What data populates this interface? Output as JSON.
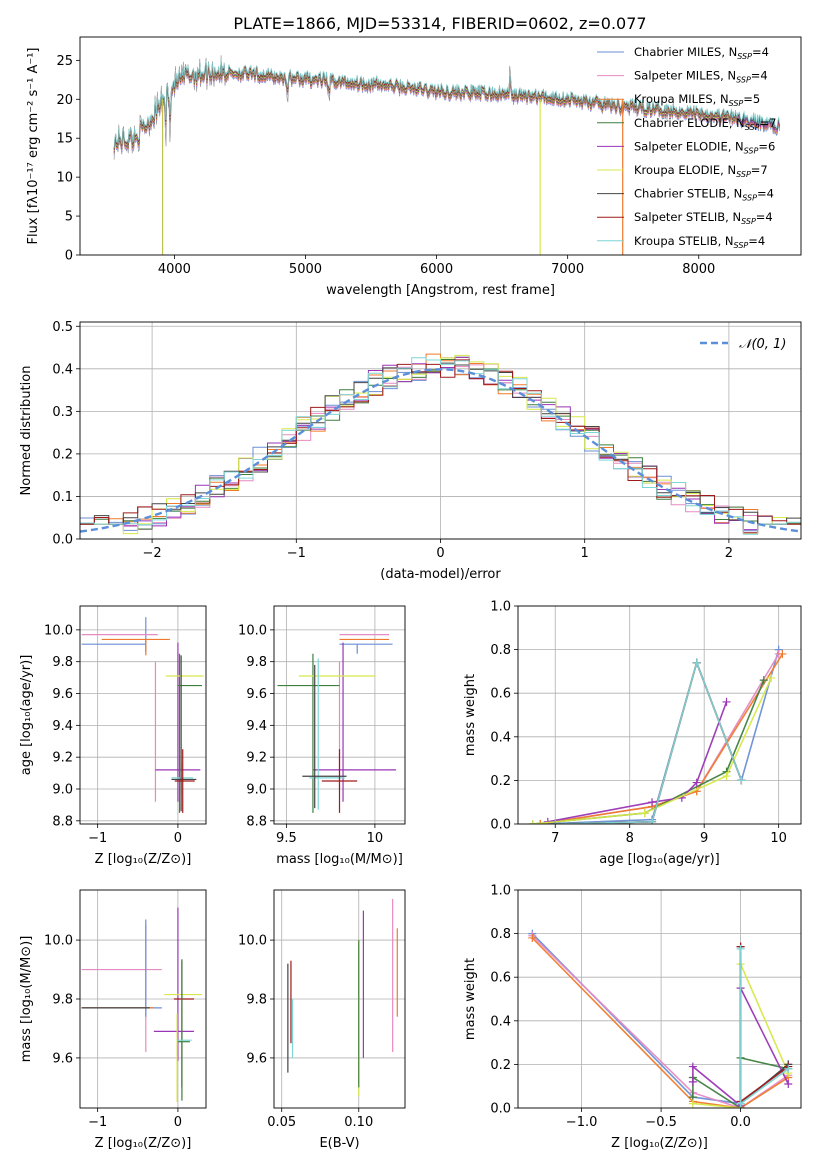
{
  "figure": {
    "title": "PLATE=1866, MJD=53314, FIBERID=0602, z=0.077"
  },
  "chart_data": [
    {
      "id": "spectrum",
      "type": "line",
      "xlabel": "wavelength [Angstrom, rest frame]",
      "ylabel": "Flux [fλ10⁻¹⁷ erg cm⁻² s⁻¹ A⁻¹]",
      "xlim": [
        3280,
        8780
      ],
      "ylim": [
        0,
        28
      ],
      "xticks": [
        4000,
        5000,
        6000,
        7000,
        8000
      ],
      "yticks": [
        0,
        5,
        10,
        15,
        20,
        25
      ],
      "legend_position": "upper right",
      "grid": false,
      "series": [
        {
          "name": "Chabrier MILES, N_SSP=4",
          "color": "#6a8fd6"
        },
        {
          "name": "Salpeter MILES, N_SSP=4",
          "color": "#e68ac3"
        },
        {
          "name": "Kroupa MILES, N_SSP=5",
          "color": "#f07a2c"
        },
        {
          "name": "Chabrier ELODIE, N_SSP=7",
          "color": "#3f7f3f"
        },
        {
          "name": "Salpeter ELODIE, N_SSP=6",
          "color": "#9a35b5"
        },
        {
          "name": "Kroupa ELODIE, N_SSP=7",
          "color": "#d6e84a"
        },
        {
          "name": "Chabrier STELIB, N_SSP=4",
          "color": "#444444"
        },
        {
          "name": "Salpeter STELIB, N_SSP=4",
          "color": "#a01a1a"
        },
        {
          "name": "Kroupa STELIB, N_SSP=4",
          "color": "#7fd6d6"
        }
      ],
      "data_color": "#888888",
      "continuum": {
        "x": [
          3540,
          3700,
          3800,
          3900,
          4000,
          4100,
          4300,
          4500,
          4800,
          5200,
          5600,
          6000,
          6500,
          7000,
          7300,
          7600,
          8000,
          8300,
          8600
        ],
        "y": [
          14.5,
          15,
          17,
          19.5,
          22,
          23,
          23.5,
          23.3,
          22.8,
          22.3,
          21.8,
          21,
          20.6,
          20,
          19.2,
          18.8,
          18.2,
          17.5,
          16.5
        ]
      }
    },
    {
      "id": "residuals",
      "type": "line",
      "xlabel": "(data-model)/error",
      "ylabel": "Normed distribution",
      "xlim": [
        -2.5,
        2.5
      ],
      "ylim": [
        0,
        0.51
      ],
      "xticks": [
        -2,
        -1,
        0,
        1,
        2
      ],
      "yticks": [
        0.0,
        0.1,
        0.2,
        0.3,
        0.4,
        0.5
      ],
      "grid": true,
      "legend_position": "upper right",
      "reference": {
        "name": "𝒩(0, 1)",
        "color": "#5b8fd9",
        "mean": 0,
        "sigma": 1
      }
    },
    {
      "id": "age-vs-Z",
      "type": "scatter",
      "xlabel": "Z [log₁₀(Z/Z⊙)]",
      "ylabel": "age  [log₁₀(age/yr)]",
      "xlim": [
        -1.22,
        0.35
      ],
      "ylim": [
        8.78,
        10.15
      ],
      "xticks": [
        -1,
        0
      ],
      "yticks": [
        8.8,
        9.0,
        9.2,
        9.4,
        9.6,
        9.8,
        10.0
      ],
      "grid": true,
      "errorbars": [
        {
          "x": -0.4,
          "y": 9.91,
          "xerr": [
            0.8,
            0
          ],
          "yerr": [
            0.05,
            0.17
          ],
          "color": "#6a8fd6"
        },
        {
          "x": -0.4,
          "y": 9.97,
          "xerr": [
            0.8,
            0.15
          ],
          "yerr": [
            0,
            0
          ],
          "color": "#e68ac3"
        },
        {
          "x": -0.4,
          "y": 9.94,
          "xerr": [
            0.55,
            0.3
          ],
          "yerr": [
            0.1,
            0
          ],
          "color": "#f07a2c"
        },
        {
          "x": -0.28,
          "y": 9.1,
          "xerr": [
            0,
            0
          ],
          "yerr": [
            0.18,
            0.7
          ],
          "color": "#e68ac3"
        },
        {
          "x": 0.0,
          "y": 9.12,
          "xerr": [
            0.28,
            0.28
          ],
          "yerr": [
            0.2,
            0.8
          ],
          "color": "#9a35b5"
        },
        {
          "x": 0.02,
          "y": 9.65,
          "xerr": [
            0.02,
            0.28
          ],
          "yerr": [
            0.8,
            0.2
          ],
          "color": "#3f7f3f"
        },
        {
          "x": 0.04,
          "y": 9.71,
          "xerr": [
            0.19,
            0.28
          ],
          "yerr": [
            0,
            0
          ],
          "color": "#d6e84a"
        },
        {
          "x": 0.04,
          "y": 9.07,
          "xerr": [
            0.12,
            0.15
          ],
          "yerr": [
            0.1,
            0.1
          ],
          "color": "#7fd6d6"
        },
        {
          "x": 0.04,
          "y": 9.06,
          "xerr": [
            0.12,
            0.19
          ],
          "yerr": [
            0.2,
            0.78
          ],
          "color": "#444444"
        },
        {
          "x": 0.06,
          "y": 9.05,
          "xerr": [
            0.1,
            0.15
          ],
          "yerr": [
            0.2,
            0.2
          ],
          "color": "#a01a1a"
        }
      ]
    },
    {
      "id": "age-vs-mass",
      "type": "scatter",
      "xlabel": "mass [log₁₀(M/M⊙)]",
      "ylabel": "",
      "xlim": [
        9.43,
        10.17
      ],
      "ylim": [
        8.78,
        10.15
      ],
      "xticks": [
        9.5,
        10.0
      ],
      "yticks": [
        8.8,
        9.0,
        9.2,
        9.4,
        9.6,
        9.8,
        10.0
      ],
      "grid": true,
      "errorbars": [
        {
          "x": 9.9,
          "y": 9.91,
          "xerr": [
            0.1,
            0.2
          ],
          "yerr": [
            0.06,
            0.0
          ],
          "color": "#6a8fd6"
        },
        {
          "x": 9.9,
          "y": 9.97,
          "xerr": [
            0.1,
            0.18
          ],
          "yerr": [
            0,
            0
          ],
          "color": "#e68ac3"
        },
        {
          "x": 9.88,
          "y": 9.94,
          "xerr": [
            0.08,
            0.2
          ],
          "yerr": [
            0,
            0
          ],
          "color": "#f07a2c"
        },
        {
          "x": 9.8,
          "y": 9.1,
          "xerr": [
            0,
            0
          ],
          "yerr": [
            0.1,
            0.7
          ],
          "color": "#e68ac3"
        },
        {
          "x": 9.82,
          "y": 9.12,
          "xerr": [
            0.17,
            0.3
          ],
          "yerr": [
            0.2,
            0.8
          ],
          "color": "#9a35b5"
        },
        {
          "x": 9.65,
          "y": 9.65,
          "xerr": [
            0.2,
            0.15
          ],
          "yerr": [
            0.8,
            0.2
          ],
          "color": "#3f7f3f"
        },
        {
          "x": 9.72,
          "y": 9.71,
          "xerr": [
            0.15,
            0.28
          ],
          "yerr": [
            0,
            0
          ],
          "color": "#d6e84a"
        },
        {
          "x": 9.68,
          "y": 9.07,
          "xerr": [
            0.05,
            0.15
          ],
          "yerr": [
            0.2,
            0.75
          ],
          "color": "#7fd6d6"
        },
        {
          "x": 9.66,
          "y": 9.08,
          "xerr": [
            0.07,
            0.18
          ],
          "yerr": [
            0.2,
            0.7
          ],
          "color": "#444444"
        },
        {
          "x": 9.8,
          "y": 9.05,
          "xerr": [
            0.1,
            0.1
          ],
          "yerr": [
            0.2,
            0.2
          ],
          "color": "#a01a1a"
        }
      ]
    },
    {
      "id": "mass-weight-vs-age",
      "type": "line",
      "xlabel": "age  [log₁₀(age/yr)]",
      "ylabel": "mass weight",
      "xlim": [
        6.5,
        10.3
      ],
      "ylim": [
        0,
        1.0
      ],
      "xticks": [
        7,
        8,
        9,
        10
      ],
      "yticks": [
        0.0,
        0.2,
        0.4,
        0.6,
        0.8,
        1.0
      ],
      "grid": true,
      "series": [
        {
          "name": "Chabrier MILES",
          "color": "#6a8fd6",
          "x": [
            6.8,
            8.3,
            8.9,
            9.5,
            10.0
          ],
          "y": [
            0.0,
            0.02,
            0.74,
            0.2,
            0.8
          ]
        },
        {
          "name": "Salpeter MILES",
          "color": "#e68ac3",
          "x": [
            6.8,
            8.3,
            8.9,
            10.0
          ],
          "y": [
            0.0,
            0.08,
            0.15,
            0.78
          ]
        },
        {
          "name": "Kroupa MILES",
          "color": "#f07a2c",
          "x": [
            6.8,
            8.3,
            8.9,
            10.05
          ],
          "y": [
            0.0,
            0.08,
            0.15,
            0.78
          ]
        },
        {
          "name": "Chabrier ELODIE",
          "color": "#3f7f3f",
          "x": [
            6.7,
            8.2,
            9.3,
            9.8
          ],
          "y": [
            0.0,
            0.05,
            0.24,
            0.66
          ]
        },
        {
          "name": "Salpeter ELODIE",
          "color": "#9a35b5",
          "x": [
            6.9,
            8.3,
            8.7,
            8.9,
            9.3
          ],
          "y": [
            0.01,
            0.1,
            0.12,
            0.19,
            0.56
          ]
        },
        {
          "name": "Kroupa ELODIE",
          "color": "#d6e84a",
          "x": [
            6.7,
            8.2,
            9.3,
            9.9
          ],
          "y": [
            0.0,
            0.05,
            0.22,
            0.67
          ]
        },
        {
          "name": "Chabrier STELIB",
          "color": "#444444",
          "x": [
            7.0,
            8.3,
            8.9,
            9.5
          ],
          "y": [
            0.0,
            0.01,
            0.74,
            0.2
          ]
        },
        {
          "name": "Salpeter STELIB",
          "color": "#a01a1a",
          "x": [
            7.0,
            8.3,
            8.9,
            9.5
          ],
          "y": [
            0.0,
            0.01,
            0.74,
            0.2
          ]
        },
        {
          "name": "Kroupa STELIB",
          "color": "#7fd6d6",
          "x": [
            7.0,
            8.3,
            8.9,
            9.5
          ],
          "y": [
            0.0,
            0.01,
            0.74,
            0.2
          ]
        }
      ]
    },
    {
      "id": "mass-vs-Z",
      "type": "scatter",
      "xlabel": "Z [log₁₀(Z/Z⊙)]",
      "ylabel": "mass [log₁₀(M/M⊙)]",
      "xlim": [
        -1.22,
        0.35
      ],
      "ylim": [
        9.43,
        10.17
      ],
      "xticks": [
        -1,
        0
      ],
      "yticks": [
        9.6,
        9.8,
        10.0
      ],
      "grid": true,
      "errorbars": [
        {
          "x": -0.4,
          "y": 9.9,
          "xerr": [
            0.8,
            0.2
          ],
          "yerr": [
            0.28,
            0.15
          ],
          "color": "#e68ac3"
        },
        {
          "x": -0.4,
          "y": 9.77,
          "xerr": [
            0.8,
            0.2
          ],
          "yerr": [
            0.03,
            0.3
          ],
          "color": "#6a8fd6"
        },
        {
          "x": -0.4,
          "y": 9.77,
          "xerr": [
            0.8,
            0.1
          ],
          "yerr": [
            0,
            0
          ],
          "color": "#f07a2c"
        },
        {
          "x": -0.4,
          "y": 9.77,
          "xerr": [
            0.8,
            0.05
          ],
          "yerr": [
            0,
            0
          ],
          "color": "#444444"
        },
        {
          "x": 0.0,
          "y": 9.69,
          "xerr": [
            0.3,
            0.2
          ],
          "yerr": [
            0.1,
            0.42
          ],
          "color": "#9a35b5"
        },
        {
          "x": 0.03,
          "y": 9.815,
          "xerr": [
            0.2,
            0.27
          ],
          "yerr": [
            0,
            0
          ],
          "color": "#d6e84a"
        },
        {
          "x": 0.05,
          "y": 9.8,
          "xerr": [
            0.1,
            0.15
          ],
          "yerr": [
            0.3,
            0.13
          ],
          "color": "#a01a1a"
        },
        {
          "x": 0.05,
          "y": 9.655,
          "xerr": [
            0.05,
            0.1
          ],
          "yerr": [
            0.2,
            0.28
          ],
          "color": "#3f7f3f"
        },
        {
          "x": 0.05,
          "y": 9.66,
          "xerr": [
            0.05,
            0.12
          ],
          "yerr": [
            0,
            0
          ],
          "color": "#7fd6d6"
        },
        {
          "x": -0.01,
          "y": 9.5,
          "xerr": [
            0,
            0
          ],
          "yerr": [
            0.05,
            0.25
          ],
          "color": "#d6e84a"
        }
      ]
    },
    {
      "id": "mass-vs-ebv",
      "type": "scatter",
      "xlabel": "E(B-V)",
      "ylabel": "",
      "xlim": [
        0.045,
        0.13
      ],
      "ylim": [
        9.43,
        10.17
      ],
      "xticks": [
        0.05,
        0.1
      ],
      "xticklabels": [
        "0.05",
        "0.10"
      ],
      "yticks": [
        9.6,
        9.8,
        10.0
      ],
      "grid": true,
      "errorbars": [
        {
          "x": 0.054,
          "y": 9.75,
          "xerr": [
            0,
            0
          ],
          "yerr": [
            0.2,
            0.17
          ],
          "color": "#444444"
        },
        {
          "x": 0.056,
          "y": 9.8,
          "xerr": [
            0,
            0
          ],
          "yerr": [
            0.15,
            0.13
          ],
          "color": "#a01a1a"
        },
        {
          "x": 0.057,
          "y": 9.75,
          "xerr": [
            0,
            0
          ],
          "yerr": [
            0.15,
            0.05
          ],
          "color": "#7fd6d6"
        },
        {
          "x": 0.1,
          "y": 9.75,
          "xerr": [
            0,
            0
          ],
          "yerr": [
            0.28,
            0.25
          ],
          "color": "#d6e84a"
        },
        {
          "x": 0.1,
          "y": 9.7,
          "xerr": [
            0,
            0
          ],
          "yerr": [
            0.2,
            0.3
          ],
          "color": "#3f7f3f"
        },
        {
          "x": 0.103,
          "y": 9.85,
          "xerr": [
            0,
            0
          ],
          "yerr": [
            0.25,
            0.25
          ],
          "color": "#9a35b5"
        },
        {
          "x": 0.122,
          "y": 9.88,
          "xerr": [
            0,
            0
          ],
          "yerr": [
            0.26,
            0.26
          ],
          "color": "#e68ac3"
        },
        {
          "x": 0.125,
          "y": 9.89,
          "xerr": [
            0,
            0
          ],
          "yerr": [
            0.15,
            0.15
          ],
          "color": "#f07a2c"
        }
      ]
    },
    {
      "id": "mass-weight-vs-Z",
      "type": "line",
      "xlabel": "Z [log₁₀(Z/Z⊙)]",
      "ylabel": "mass weight",
      "xlim": [
        -1.4,
        0.38
      ],
      "ylim": [
        0,
        1.0
      ],
      "xticks": [
        -1.0,
        -0.5,
        0.0
      ],
      "xticklabels": [
        "−1.0",
        "−0.5",
        "0.0"
      ],
      "yticks": [
        0.0,
        0.2,
        0.4,
        0.6,
        0.8,
        1.0
      ],
      "grid": true,
      "series": [
        {
          "name": "Chabrier MILES",
          "color": "#6a8fd6",
          "x": [
            -1.31,
            -0.3,
            0.0,
            0.3
          ],
          "y": [
            0.8,
            0.05,
            0.02,
            0.2
          ]
        },
        {
          "name": "Salpeter MILES",
          "color": "#e68ac3",
          "x": [
            -1.31,
            -0.3,
            0.0,
            0.3
          ],
          "y": [
            0.79,
            0.07,
            0.0,
            0.15
          ]
        },
        {
          "name": "Kroupa MILES",
          "color": "#f07a2c",
          "x": [
            -1.31,
            -0.3,
            0.0,
            0.3
          ],
          "y": [
            0.78,
            0.03,
            0.0,
            0.14
          ]
        },
        {
          "name": "Chabrier ELODIE",
          "color": "#3f7f3f",
          "x": [
            -0.3,
            -0.3,
            0.0,
            0.0,
            0.3
          ],
          "y": [
            0.05,
            0.14,
            0.0,
            0.23,
            0.18
          ]
        },
        {
          "name": "Salpeter ELODIE",
          "color": "#9a35b5",
          "x": [
            -0.3,
            -0.3,
            0.0,
            0.0,
            0.3
          ],
          "y": [
            0.12,
            0.19,
            0.01,
            0.55,
            0.11
          ]
        },
        {
          "name": "Kroupa ELODIE",
          "color": "#d6e84a",
          "x": [
            -0.3,
            0.0,
            0.0,
            0.3
          ],
          "y": [
            0.02,
            0.0,
            0.66,
            0.16
          ]
        },
        {
          "name": "Chabrier STELIB",
          "color": "#444444",
          "x": [
            0.0,
            0.0,
            0.3
          ],
          "y": [
            0.74,
            0.02,
            0.2
          ]
        },
        {
          "name": "Salpeter STELIB",
          "color": "#a01a1a",
          "x": [
            0.0,
            0.0,
            0.3
          ],
          "y": [
            0.74,
            0.03,
            0.19
          ]
        },
        {
          "name": "Kroupa STELIB",
          "color": "#7fd6d6",
          "x": [
            0.0,
            0.0,
            0.3
          ],
          "y": [
            0.73,
            0.02,
            0.18
          ]
        }
      ]
    }
  ]
}
